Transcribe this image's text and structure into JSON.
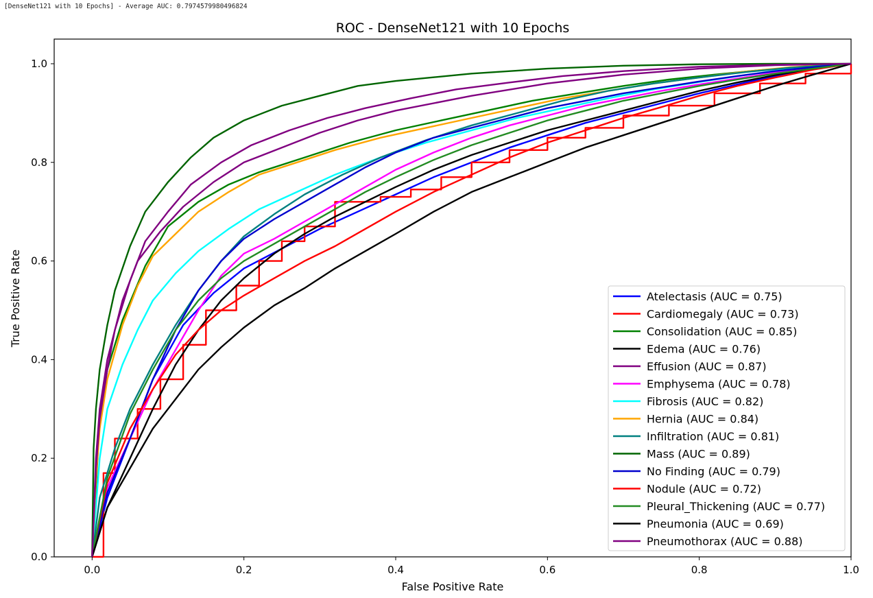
{
  "output_log": "[DenseNet121 with 10 Epochs] - Average AUC: 0.7974579980496824",
  "chart_data": {
    "type": "line",
    "title": "ROC - DenseNet121 with 10 Epochs",
    "xlabel": "False Positive Rate",
    "ylabel": "True Positive Rate",
    "xlim": [
      -0.05,
      1.0
    ],
    "ylim": [
      0.0,
      1.05
    ],
    "xticks": [
      "0.0",
      "0.2",
      "0.4",
      "0.6",
      "0.8",
      "1.0"
    ],
    "yticks": [
      "0.0",
      "0.2",
      "0.4",
      "0.6",
      "0.8",
      "1.0"
    ],
    "grid": false,
    "legend_position": "lower-right",
    "series": [
      {
        "name": "Atelectasis (AUC = 0.75)",
        "color": "#0000ff",
        "steps": false,
        "x": [
          0,
          0.02,
          0.05,
          0.08,
          0.12,
          0.16,
          0.2,
          0.25,
          0.3,
          0.35,
          0.4,
          0.45,
          0.5,
          0.55,
          0.6,
          0.65,
          0.7,
          0.75,
          0.8,
          0.85,
          0.9,
          0.95,
          1.0
        ],
        "y": [
          0,
          0.12,
          0.24,
          0.36,
          0.47,
          0.535,
          0.585,
          0.625,
          0.665,
          0.7,
          0.735,
          0.77,
          0.8,
          0.83,
          0.855,
          0.88,
          0.9,
          0.92,
          0.94,
          0.958,
          0.975,
          0.99,
          1.0
        ]
      },
      {
        "name": "Cardiomegaly (AUC = 0.73)",
        "color": "#ff0000",
        "steps": true,
        "x": [
          0,
          0.015,
          0.03,
          0.06,
          0.09,
          0.12,
          0.15,
          0.19,
          0.22,
          0.25,
          0.28,
          0.32,
          0.38,
          0.42,
          0.46,
          0.5,
          0.55,
          0.6,
          0.65,
          0.7,
          0.76,
          0.82,
          0.88,
          0.94,
          1.0
        ],
        "y": [
          0,
          0.17,
          0.24,
          0.3,
          0.36,
          0.43,
          0.5,
          0.55,
          0.6,
          0.64,
          0.67,
          0.72,
          0.73,
          0.745,
          0.77,
          0.8,
          0.825,
          0.85,
          0.87,
          0.895,
          0.915,
          0.94,
          0.96,
          0.98,
          1.0
        ]
      },
      {
        "name": "Consolidation (AUC = 0.85)",
        "color": "#008000",
        "steps": false,
        "x": [
          0,
          0.01,
          0.02,
          0.04,
          0.07,
          0.1,
          0.14,
          0.18,
          0.22,
          0.28,
          0.34,
          0.4,
          0.46,
          0.52,
          0.58,
          0.64,
          0.7,
          0.76,
          0.82,
          0.88,
          0.94,
          1.0
        ],
        "y": [
          0,
          0.28,
          0.38,
          0.48,
          0.59,
          0.67,
          0.72,
          0.755,
          0.78,
          0.81,
          0.84,
          0.865,
          0.885,
          0.905,
          0.925,
          0.94,
          0.955,
          0.968,
          0.978,
          0.987,
          0.994,
          1.0
        ]
      },
      {
        "name": "Edema (AUC = 0.76)",
        "color": "#000000",
        "steps": false,
        "x": [
          0,
          0.02,
          0.05,
          0.08,
          0.11,
          0.14,
          0.17,
          0.2,
          0.24,
          0.28,
          0.32,
          0.36,
          0.4,
          0.45,
          0.5,
          0.55,
          0.6,
          0.65,
          0.7,
          0.75,
          0.8,
          0.85,
          0.9,
          0.95,
          1.0
        ],
        "y": [
          0,
          0.1,
          0.2,
          0.3,
          0.39,
          0.46,
          0.52,
          0.565,
          0.615,
          0.655,
          0.69,
          0.72,
          0.75,
          0.785,
          0.815,
          0.84,
          0.865,
          0.885,
          0.905,
          0.925,
          0.945,
          0.962,
          0.977,
          0.99,
          1.0
        ]
      },
      {
        "name": "Effusion (AUC = 0.87)",
        "color": "#800080",
        "steps": false,
        "x": [
          0,
          0.005,
          0.01,
          0.02,
          0.04,
          0.06,
          0.09,
          0.12,
          0.16,
          0.2,
          0.25,
          0.3,
          0.35,
          0.4,
          0.5,
          0.6,
          0.7,
          0.8,
          0.9,
          1.0
        ],
        "y": [
          0,
          0.2,
          0.3,
          0.4,
          0.52,
          0.6,
          0.66,
          0.71,
          0.76,
          0.8,
          0.83,
          0.86,
          0.885,
          0.905,
          0.935,
          0.96,
          0.978,
          0.99,
          0.997,
          1.0
        ]
      },
      {
        "name": "Emphysema (AUC = 0.78)",
        "color": "#ff00ff",
        "steps": false,
        "x": [
          0,
          0.02,
          0.05,
          0.08,
          0.11,
          0.14,
          0.17,
          0.2,
          0.24,
          0.28,
          0.32,
          0.36,
          0.4,
          0.45,
          0.5,
          0.55,
          0.6,
          0.65,
          0.7,
          0.75,
          0.8,
          0.85,
          0.9,
          0.95,
          1.0
        ],
        "y": [
          0,
          0.14,
          0.24,
          0.34,
          0.42,
          0.5,
          0.57,
          0.615,
          0.645,
          0.68,
          0.715,
          0.75,
          0.785,
          0.82,
          0.85,
          0.875,
          0.895,
          0.915,
          0.93,
          0.945,
          0.958,
          0.97,
          0.982,
          0.992,
          1.0
        ]
      },
      {
        "name": "Fibrosis (AUC = 0.82)",
        "color": "#00ffff",
        "steps": false,
        "x": [
          0,
          0.01,
          0.02,
          0.04,
          0.06,
          0.08,
          0.11,
          0.14,
          0.18,
          0.22,
          0.27,
          0.32,
          0.38,
          0.44,
          0.5,
          0.56,
          0.62,
          0.68,
          0.74,
          0.8,
          0.86,
          0.92,
          1.0
        ],
        "y": [
          0,
          0.2,
          0.3,
          0.39,
          0.46,
          0.52,
          0.575,
          0.62,
          0.665,
          0.705,
          0.74,
          0.775,
          0.81,
          0.84,
          0.865,
          0.89,
          0.91,
          0.93,
          0.948,
          0.963,
          0.977,
          0.99,
          1.0
        ]
      },
      {
        "name": "Hernia (AUC = 0.84)",
        "color": "#ffa500",
        "steps": false,
        "x": [
          0,
          0.005,
          0.01,
          0.02,
          0.04,
          0.06,
          0.08,
          0.11,
          0.14,
          0.18,
          0.22,
          0.27,
          0.32,
          0.38,
          0.44,
          0.5,
          0.56,
          0.62,
          0.68,
          0.74,
          0.8,
          0.86,
          0.92,
          1.0
        ],
        "y": [
          0,
          0.16,
          0.26,
          0.36,
          0.47,
          0.55,
          0.61,
          0.655,
          0.7,
          0.74,
          0.775,
          0.8,
          0.825,
          0.85,
          0.87,
          0.89,
          0.91,
          0.93,
          0.945,
          0.96,
          0.972,
          0.984,
          0.993,
          1.0
        ]
      },
      {
        "name": "Infiltration (AUC = 0.81)",
        "color": "#008080",
        "steps": false,
        "x": [
          0,
          0.01,
          0.03,
          0.05,
          0.08,
          0.11,
          0.14,
          0.17,
          0.2,
          0.24,
          0.28,
          0.33,
          0.38,
          0.44,
          0.5,
          0.56,
          0.62,
          0.68,
          0.74,
          0.8,
          0.86,
          0.92,
          1.0
        ],
        "y": [
          0,
          0.12,
          0.22,
          0.3,
          0.39,
          0.47,
          0.54,
          0.6,
          0.65,
          0.695,
          0.735,
          0.775,
          0.81,
          0.845,
          0.875,
          0.9,
          0.925,
          0.945,
          0.96,
          0.972,
          0.983,
          0.992,
          1.0
        ]
      },
      {
        "name": "Mass (AUC = 0.89)",
        "color": "#006400",
        "steps": false,
        "x": [
          0,
          0.002,
          0.005,
          0.01,
          0.02,
          0.03,
          0.05,
          0.07,
          0.1,
          0.13,
          0.16,
          0.2,
          0.25,
          0.3,
          0.35,
          0.4,
          0.5,
          0.6,
          0.7,
          0.8,
          0.9,
          1.0
        ],
        "y": [
          0,
          0.22,
          0.3,
          0.38,
          0.47,
          0.54,
          0.63,
          0.7,
          0.76,
          0.81,
          0.85,
          0.885,
          0.915,
          0.935,
          0.955,
          0.965,
          0.98,
          0.99,
          0.996,
          0.999,
          1.0,
          1.0
        ]
      },
      {
        "name": "No Finding (AUC = 0.79)",
        "color": "#0000cd",
        "steps": false,
        "x": [
          0,
          0.02,
          0.05,
          0.08,
          0.11,
          0.14,
          0.17,
          0.2,
          0.24,
          0.28,
          0.32,
          0.36,
          0.4,
          0.45,
          0.5,
          0.55,
          0.6,
          0.65,
          0.7,
          0.75,
          0.8,
          0.85,
          0.9,
          0.95,
          1.0
        ],
        "y": [
          0,
          0.13,
          0.24,
          0.36,
          0.46,
          0.54,
          0.6,
          0.645,
          0.685,
          0.72,
          0.755,
          0.79,
          0.82,
          0.85,
          0.87,
          0.89,
          0.91,
          0.925,
          0.94,
          0.952,
          0.964,
          0.975,
          0.985,
          0.993,
          1.0
        ]
      },
      {
        "name": "Nodule (AUC = 0.72)",
        "color": "#ff0000",
        "steps": false,
        "x": [
          0,
          0.02,
          0.05,
          0.08,
          0.11,
          0.14,
          0.17,
          0.2,
          0.24,
          0.28,
          0.32,
          0.36,
          0.4,
          0.45,
          0.5,
          0.55,
          0.6,
          0.65,
          0.7,
          0.75,
          0.8,
          0.85,
          0.9,
          0.95,
          1.0
        ],
        "y": [
          0,
          0.15,
          0.26,
          0.34,
          0.41,
          0.46,
          0.5,
          0.53,
          0.565,
          0.6,
          0.63,
          0.665,
          0.7,
          0.74,
          0.775,
          0.81,
          0.84,
          0.865,
          0.89,
          0.912,
          0.935,
          0.955,
          0.972,
          0.988,
          1.0
        ]
      },
      {
        "name": "Pleural_Thickening (AUC = 0.77)",
        "color": "#228b22",
        "steps": false,
        "x": [
          0,
          0.02,
          0.05,
          0.08,
          0.11,
          0.14,
          0.17,
          0.2,
          0.24,
          0.28,
          0.32,
          0.36,
          0.4,
          0.45,
          0.5,
          0.55,
          0.6,
          0.65,
          0.7,
          0.75,
          0.8,
          0.85,
          0.9,
          0.95,
          1.0
        ],
        "y": [
          0,
          0.16,
          0.29,
          0.38,
          0.46,
          0.52,
          0.565,
          0.6,
          0.635,
          0.67,
          0.705,
          0.74,
          0.77,
          0.805,
          0.835,
          0.86,
          0.885,
          0.905,
          0.925,
          0.94,
          0.955,
          0.968,
          0.98,
          0.99,
          1.0
        ]
      },
      {
        "name": "Pneumonia (AUC = 0.69)",
        "color": "#000000",
        "steps": false,
        "x": [
          0,
          0.02,
          0.05,
          0.08,
          0.11,
          0.14,
          0.17,
          0.2,
          0.24,
          0.28,
          0.32,
          0.36,
          0.4,
          0.45,
          0.5,
          0.55,
          0.6,
          0.65,
          0.7,
          0.75,
          0.8,
          0.85,
          0.9,
          0.95,
          1.0
        ],
        "y": [
          0,
          0.1,
          0.18,
          0.26,
          0.32,
          0.38,
          0.425,
          0.465,
          0.51,
          0.545,
          0.585,
          0.62,
          0.655,
          0.7,
          0.74,
          0.77,
          0.8,
          0.83,
          0.855,
          0.88,
          0.905,
          0.93,
          0.955,
          0.978,
          1.0
        ]
      },
      {
        "name": "Pneumothorax (AUC = 0.88)",
        "color": "#800080",
        "steps": false,
        "x": [
          0,
          0.005,
          0.01,
          0.02,
          0.03,
          0.05,
          0.07,
          0.1,
          0.13,
          0.17,
          0.21,
          0.26,
          0.31,
          0.36,
          0.42,
          0.48,
          0.55,
          0.62,
          0.7,
          0.8,
          0.9,
          1.0
        ],
        "y": [
          0,
          0.18,
          0.28,
          0.38,
          0.46,
          0.56,
          0.64,
          0.7,
          0.755,
          0.8,
          0.835,
          0.865,
          0.89,
          0.91,
          0.93,
          0.948,
          0.962,
          0.975,
          0.985,
          0.994,
          0.998,
          1.0
        ]
      }
    ]
  }
}
